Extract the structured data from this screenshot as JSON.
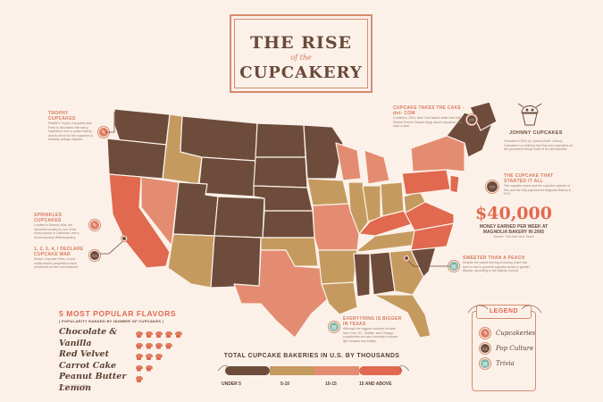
{
  "title": {
    "line1": "THE RISE",
    "line2": "of the",
    "line3": "CUPCAKERY"
  },
  "annotations": {
    "trophy": {
      "label": "TROPHY CUPCAKES",
      "text": "Seattle's Trophy Cupcakes and Party is decorated with fancy inspiration from a quaint bakery and its decor for the cupcakes is similarly vintage inspired."
    },
    "sprinkles": {
      "label": "SPRINKLES CUPCAKES",
      "text": "Located in Beverly Hills, the Sprinkles location is one of the most popular in California, and a Smorezandery Willowzandery."
    },
    "cupcake_war": {
      "label": "1, 2, 3, 4, I DECLARE CUPCAKE WAR",
      "text": "Kristof, Cupcake Wars, a new reality based competition show premiered on the Food Network."
    },
    "cake_com": {
      "label": "CUPCAKE TAKES THE CAKE -dot- COM",
      "text": "Created in 2004, New York based writer and editor Rachel Kramer Bussel blogs about cupcakes, jolly days a year."
    },
    "johnny": {
      "label": "JOHNNY CUPCAKES",
      "text": "Founded in 2001 by Johnny Earle, Johnny Cupcakes is a clothing line that uses cupcakes as the prominent design motif of its merchandise."
    },
    "started": {
      "label": "THE CUPCAKE THAT STARTED IT ALL",
      "text": "The cupcake scene and the cupcake episode of Sex and the City popularized Magnolia Bakery in NYC."
    },
    "sweeter": {
      "label": "SWEETER THAN A PEACH",
      "text": "Despite the recent thriving economy, there has been a rise in gourmet cupcake shops in greater Atlanta, according to the Atlanta Journal."
    },
    "bigger": {
      "label": "EVERYTHING IS BIGGER IN TEXAS",
      "text": "Although the biggest numbers include New York, DC, Seattle, and Chicago, cupcakeries are also booming in places like Houston and Dallas."
    }
  },
  "stat": {
    "value": "$40,000",
    "caption": "MONEY EARNED PER WEEK AT MAGNOLIA BAKERY IN 2005",
    "source": "Source: The New York Times"
  },
  "flavors": {
    "heading": "5 MOST POPULAR FLAVORS",
    "subheading": "( POPULARITY RANKED BY NUMBER OF CUPCAKES )",
    "items": [
      "Chocolate & Vanilla",
      "Red Velvet",
      "Carrot Cake",
      "Peanut Butter",
      "Lemon"
    ],
    "cupcake_counts": [
      5,
      4,
      3,
      2,
      1
    ],
    "source": "Source: NLF Grading"
  },
  "scale": {
    "heading": "TOTAL CUPCAKE BAKERIES IN U.S. BY THOUSANDS",
    "labels": [
      "UNDER 5",
      "5-10",
      "10-15",
      "15 AND ABOVE"
    ],
    "colors": [
      "#6d4c3c",
      "#c59a5f",
      "#e48c71",
      "#e0694f"
    ]
  },
  "legend": {
    "title": "LEGEND",
    "items": [
      {
        "label": "Cupcakeries",
        "icon": "cupcake-icon"
      },
      {
        "label": "Pop Culture",
        "icon": "tv-icon"
      },
      {
        "label": "Trivia",
        "icon": "book-icon"
      }
    ]
  },
  "colors": {
    "under5": "#6d4c3c",
    "5to10": "#c59a5f",
    "10to15": "#e48c71",
    "15up": "#e0694f",
    "background": "#fbf1e9"
  }
}
